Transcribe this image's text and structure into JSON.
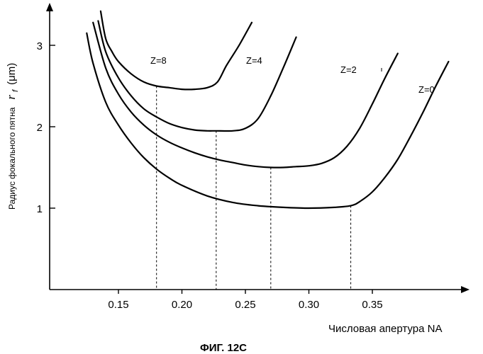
{
  "chart_data": {
    "type": "line",
    "xlabel": "Числовая апертура NA",
    "ylabel": {
      "text": "Радиус фокального пятна",
      "symbol": "r",
      "subscript": "f",
      "unit": "(μm)"
    },
    "caption": "ФИГ. 12C",
    "x_ticks": [
      "0.15",
      "0.20",
      "0.25",
      "0.30",
      "0.35"
    ],
    "x_tick_values": [
      0.15,
      0.2,
      0.25,
      0.3,
      0.35
    ],
    "y_ticks": [
      "1",
      "2",
      "3"
    ],
    "y_tick_values": [
      1,
      2,
      3
    ],
    "grid": false,
    "series": [
      {
        "name": "Z=8",
        "x": [
          0.136,
          0.14,
          0.145,
          0.15,
          0.16,
          0.17,
          0.18,
          0.19,
          0.2,
          0.21,
          0.22,
          0.228,
          0.235,
          0.245,
          0.255
        ],
        "y": [
          3.42,
          3.08,
          2.92,
          2.8,
          2.65,
          2.55,
          2.5,
          2.48,
          2.46,
          2.46,
          2.48,
          2.55,
          2.75,
          3.0,
          3.28
        ],
        "min_x": 0.18
      },
      {
        "name": "Z=4",
        "x": [
          0.134,
          0.14,
          0.15,
          0.16,
          0.17,
          0.18,
          0.19,
          0.2,
          0.21,
          0.22,
          0.227,
          0.24,
          0.25,
          0.26,
          0.27,
          0.28,
          0.29
        ],
        "y": [
          3.3,
          2.92,
          2.6,
          2.38,
          2.22,
          2.12,
          2.04,
          1.99,
          1.96,
          1.95,
          1.95,
          1.95,
          1.98,
          2.1,
          2.38,
          2.73,
          3.1
        ],
        "min_x": 0.227
      },
      {
        "name": "Z=2",
        "x": [
          0.13,
          0.14,
          0.15,
          0.16,
          0.17,
          0.18,
          0.19,
          0.2,
          0.21,
          0.22,
          0.23,
          0.24,
          0.25,
          0.26,
          0.27,
          0.28,
          0.29,
          0.3,
          0.31,
          0.32,
          0.33,
          0.34,
          0.35,
          0.36,
          0.37
        ],
        "y": [
          3.28,
          2.72,
          2.4,
          2.18,
          2.02,
          1.9,
          1.81,
          1.74,
          1.68,
          1.63,
          1.59,
          1.56,
          1.53,
          1.51,
          1.5,
          1.5,
          1.51,
          1.52,
          1.55,
          1.62,
          1.76,
          1.98,
          2.28,
          2.6,
          2.9
        ],
        "min_x": 0.27
      },
      {
        "name": "Z=0",
        "x": [
          0.125,
          0.13,
          0.14,
          0.15,
          0.16,
          0.17,
          0.18,
          0.19,
          0.2,
          0.22,
          0.24,
          0.26,
          0.28,
          0.3,
          0.32,
          0.333,
          0.34,
          0.35,
          0.36,
          0.37,
          0.38,
          0.39,
          0.4,
          0.41
        ],
        "y": [
          3.15,
          2.78,
          2.3,
          2.02,
          1.8,
          1.62,
          1.48,
          1.37,
          1.28,
          1.15,
          1.07,
          1.03,
          1.01,
          1.0,
          1.01,
          1.03,
          1.08,
          1.2,
          1.38,
          1.6,
          1.88,
          2.18,
          2.5,
          2.8
        ],
        "min_x": 0.333
      }
    ]
  }
}
